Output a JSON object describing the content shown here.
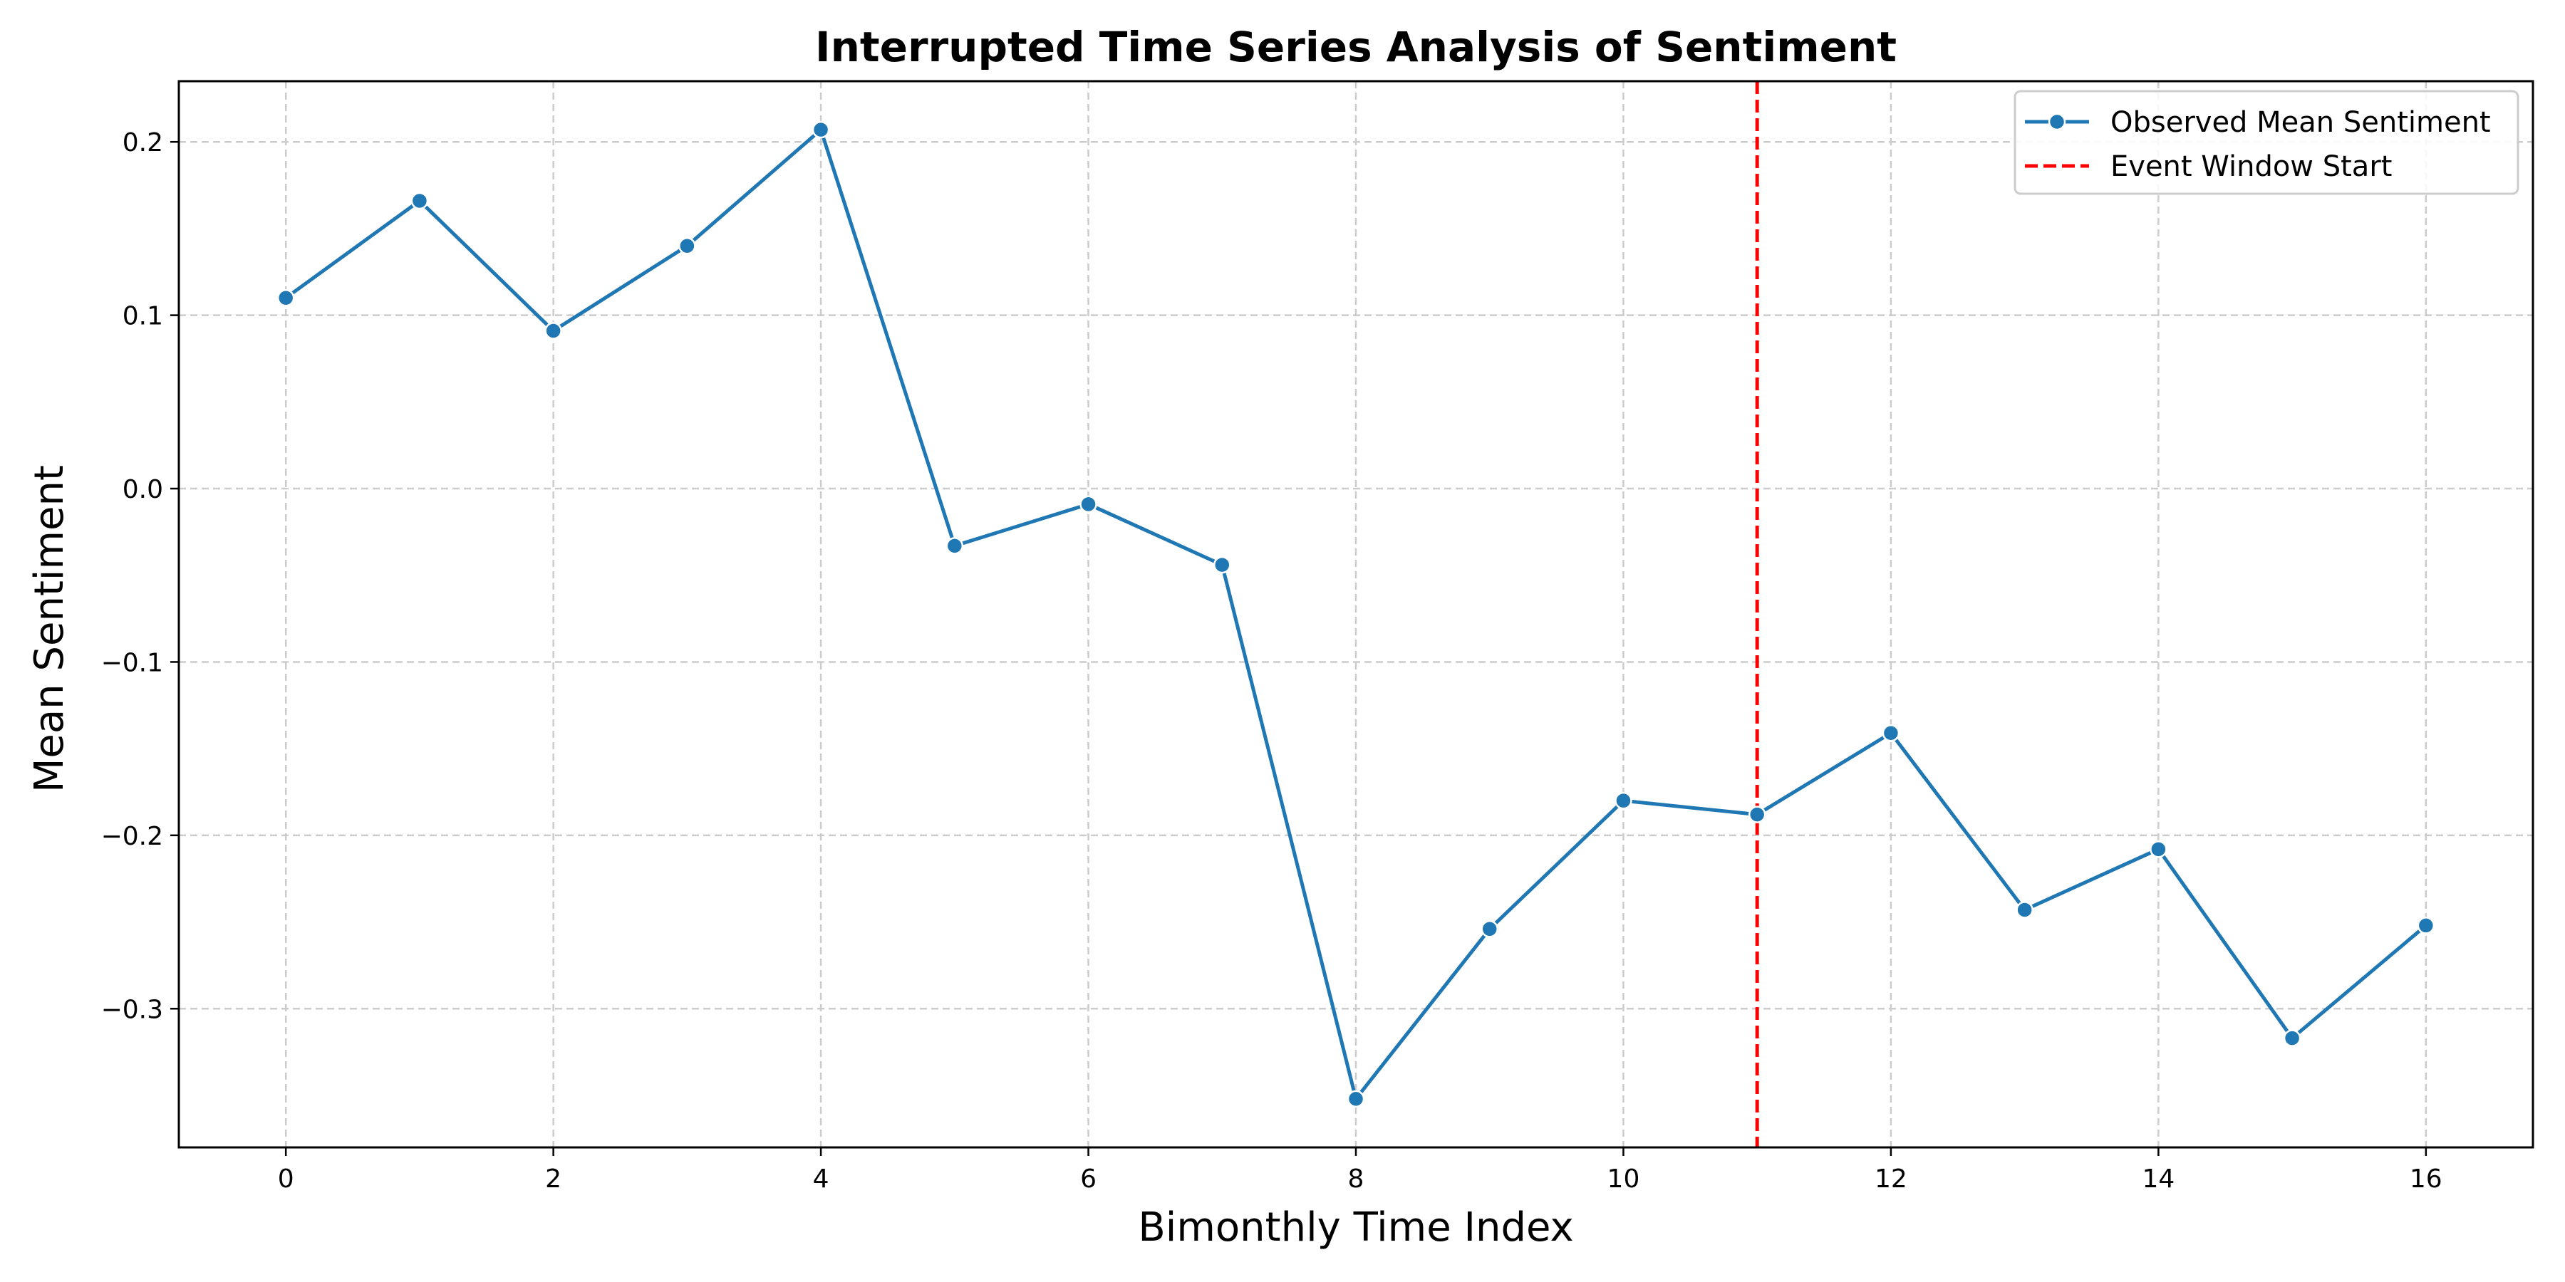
{
  "chart_data": {
    "type": "line",
    "title": "Interrupted Time Series Analysis of Sentiment",
    "xlabel": "Bimonthly Time Index",
    "ylabel": "Mean Sentiment",
    "xlim": [
      -0.8,
      16.8
    ],
    "ylim": [
      -0.38,
      0.235
    ],
    "xticks": [
      0,
      2,
      4,
      6,
      8,
      10,
      12,
      14,
      16
    ],
    "yticks": [
      -0.3,
      -0.2,
      -0.1,
      0.0,
      0.1,
      0.2
    ],
    "ytick_labels": [
      "−0.3",
      "−0.2",
      "−0.1",
      "0.0",
      "0.1",
      "0.2"
    ],
    "xtick_labels": [
      "0",
      "2",
      "4",
      "6",
      "8",
      "10",
      "12",
      "14",
      "16"
    ],
    "grid": true,
    "legend_position": "top-right",
    "series": [
      {
        "name": "Observed Mean Sentiment",
        "color": "#1f77b4",
        "marker": "circle",
        "x": [
          0,
          1,
          2,
          3,
          4,
          5,
          6,
          7,
          8,
          9,
          10,
          11,
          12,
          13,
          14,
          15,
          16
        ],
        "values": [
          0.11,
          0.166,
          0.091,
          0.14,
          0.207,
          -0.033,
          -0.009,
          -0.044,
          -0.352,
          -0.254,
          -0.18,
          -0.188,
          -0.141,
          -0.243,
          -0.208,
          -0.317,
          -0.252
        ]
      }
    ],
    "vlines": [
      {
        "name": "Event Window Start",
        "x": 11,
        "color": "#ff0000",
        "style": "dashed"
      }
    ]
  }
}
